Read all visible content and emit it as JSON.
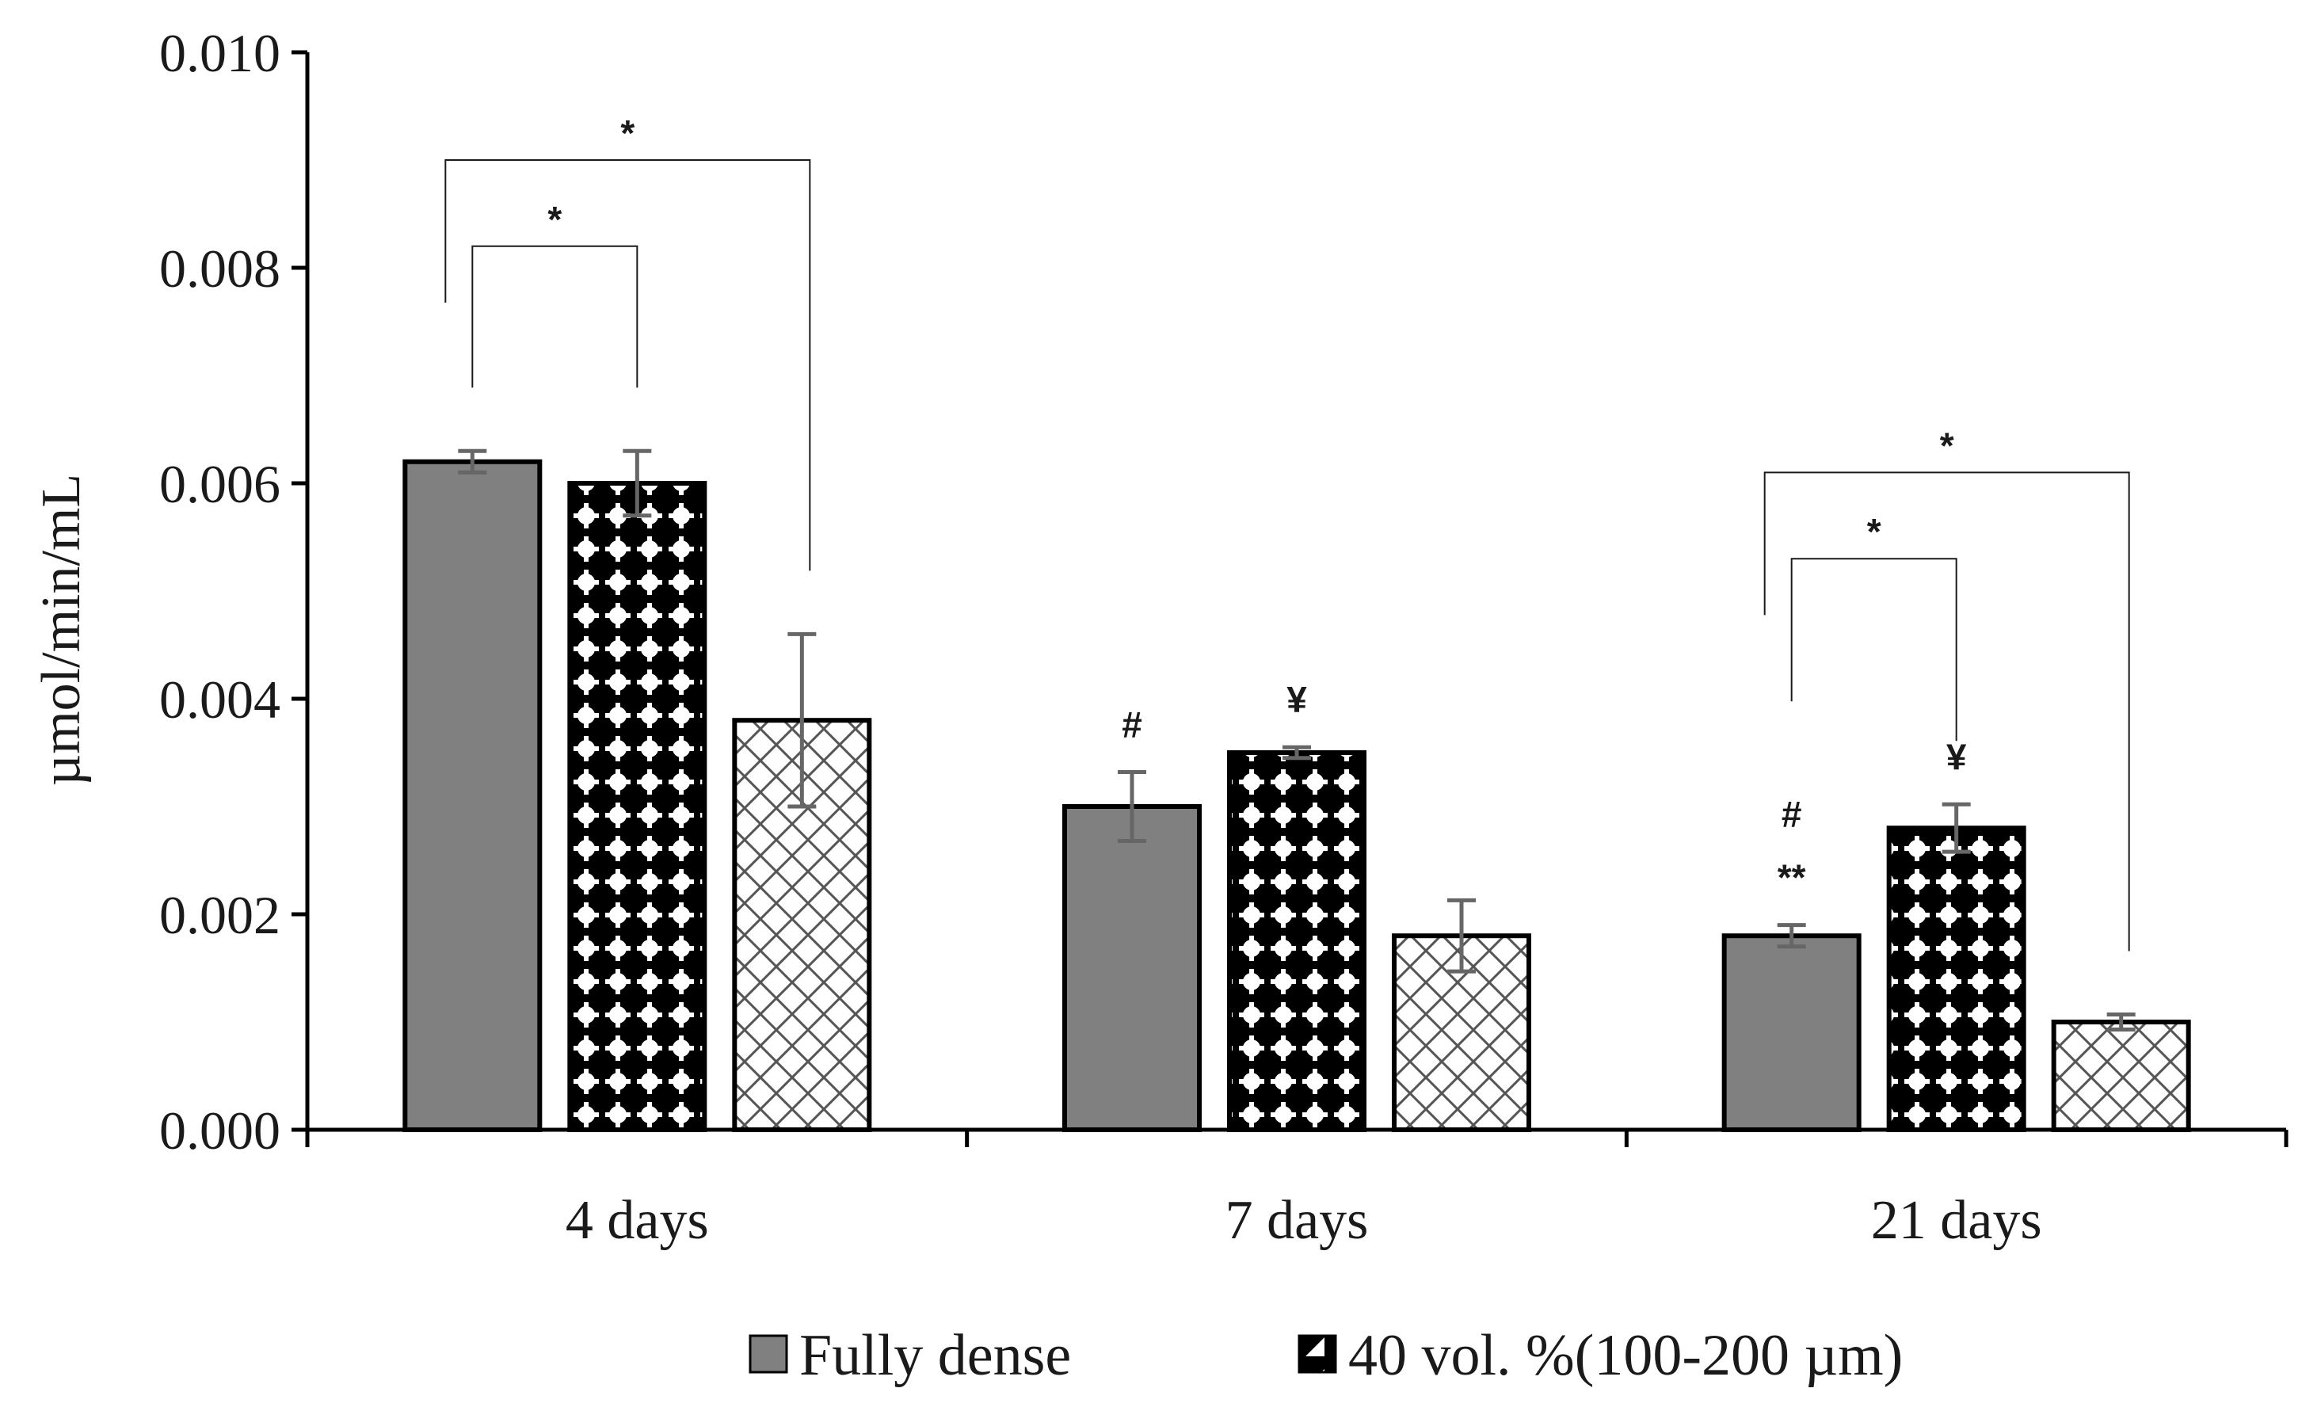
{
  "chart_data": {
    "type": "bar",
    "title": "",
    "xlabel": "",
    "ylabel": "µmol/min/mL",
    "ylim": [
      0,
      0.01
    ],
    "yticks": [
      "0.000",
      "0.002",
      "0.004",
      "0.006",
      "0.008",
      "0.010"
    ],
    "grid": false,
    "legend_position": "bottom",
    "categories": [
      "4 days",
      "7 days",
      "21 days"
    ],
    "series": [
      {
        "name": "Fully dense",
        "color": "#808080",
        "pattern": "solid",
        "values": [
          0.0062,
          0.003,
          0.0018
        ],
        "errors": [
          0.0001,
          0.00032,
          0.0001
        ]
      },
      {
        "name": "40 vol. %(100-200 µm)",
        "color": "#000000",
        "pattern": "dots",
        "values": [
          0.006,
          0.0035,
          0.0028
        ],
        "errors": [
          0.0003,
          5e-05,
          0.00022
        ]
      },
      {
        "name": "",
        "color": "#ffffff",
        "pattern": "crosshatch",
        "values": [
          0.0038,
          0.0018,
          0.001
        ],
        "errors": [
          0.0008,
          0.00033,
          7e-05
        ]
      }
    ],
    "annotations": [
      {
        "text": "#",
        "category": 1,
        "series": 0
      },
      {
        "text": "¥",
        "category": 1,
        "series": 1
      },
      {
        "text": "#",
        "category": 2,
        "series": 0,
        "line": 1
      },
      {
        "text": "**",
        "category": 2,
        "series": 0,
        "line": 0
      },
      {
        "text": "¥",
        "category": 2,
        "series": 1
      }
    ],
    "brackets": [
      {
        "text": "*",
        "category": 0,
        "from_series": 0,
        "to_series": 1,
        "level": 0.0082
      },
      {
        "text": "*",
        "category": 0,
        "from_series": 0,
        "to_series": 2,
        "level": 0.009
      },
      {
        "text": "*",
        "category": 2,
        "from_series": 0,
        "to_series": 1,
        "level": 0.0053
      },
      {
        "text": "*",
        "category": 2,
        "from_series": 0,
        "to_series": 2,
        "level": 0.0061
      }
    ]
  }
}
